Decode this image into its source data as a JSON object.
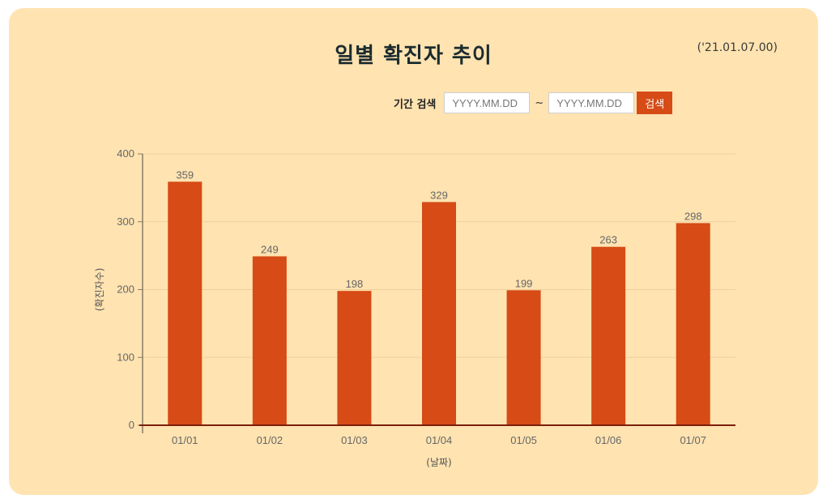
{
  "header": {
    "title": "일별 확진자 추이",
    "as_of": "('21.01.07.00)"
  },
  "search": {
    "label": "기간 검색",
    "start_placeholder": "YYYY.MM.DD",
    "separator": "~",
    "end_placeholder": "YYYY.MM.DD",
    "button_label": "검색"
  },
  "colors": {
    "background": "#ffe3b1",
    "bar": "#d64b16",
    "baseline": "#7a1f0a",
    "grid": "#f0cfa0"
  },
  "chart_data": {
    "type": "bar",
    "categories": [
      "01/01",
      "01/02",
      "01/03",
      "01/04",
      "01/05",
      "01/06",
      "01/07"
    ],
    "values": [
      359,
      249,
      198,
      329,
      199,
      263,
      298
    ],
    "xlabel": "(날짜)",
    "ylabel": "(확진자수)",
    "ylim": [
      0,
      400
    ],
    "yticks": [
      0,
      100,
      200,
      300,
      400
    ],
    "grid": true,
    "data_labels": true
  }
}
